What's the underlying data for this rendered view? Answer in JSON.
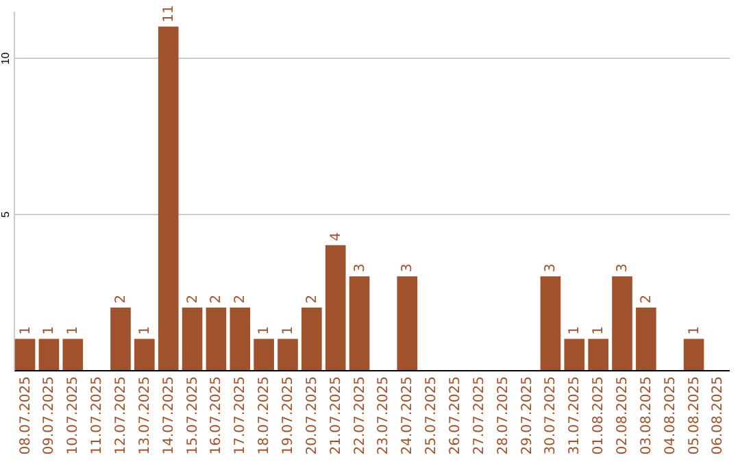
{
  "chart_data": {
    "type": "bar",
    "categories": [
      "08.07.2025",
      "09.07.2025",
      "10.07.2025",
      "11.07.2025",
      "12.07.2025",
      "13.07.2025",
      "14.07.2025",
      "15.07.2025",
      "16.07.2025",
      "17.07.2025",
      "18.07.2025",
      "19.07.2025",
      "20.07.2025",
      "21.07.2025",
      "22.07.2025",
      "23.07.2025",
      "24.07.2025",
      "25.07.2025",
      "26.07.2025",
      "27.07.2025",
      "28.07.2025",
      "29.07.2025",
      "30.07.2025",
      "31.07.2025",
      "01.08.2025",
      "02.08.2025",
      "03.08.2025",
      "04.08.2025",
      "05.08.2025",
      "06.08.2025"
    ],
    "values": [
      1,
      1,
      1,
      0,
      2,
      1,
      11,
      2,
      2,
      2,
      1,
      1,
      2,
      4,
      3,
      0,
      3,
      0,
      0,
      0,
      0,
      0,
      3,
      1,
      1,
      3,
      2,
      0,
      1,
      0
    ],
    "value_labels": [
      "1",
      "1",
      "1",
      null,
      "2",
      "1",
      "11",
      "2",
      "2",
      "2",
      "1",
      "1",
      "2",
      "4",
      "3",
      null,
      "3",
      null,
      null,
      null,
      null,
      null,
      "3",
      "1",
      "1",
      "3",
      "2",
      null,
      "1",
      null
    ],
    "color": "#a0522d",
    "ylim": [
      0,
      11.5
    ],
    "yticks": [
      5,
      10
    ],
    "grid": "y"
  }
}
